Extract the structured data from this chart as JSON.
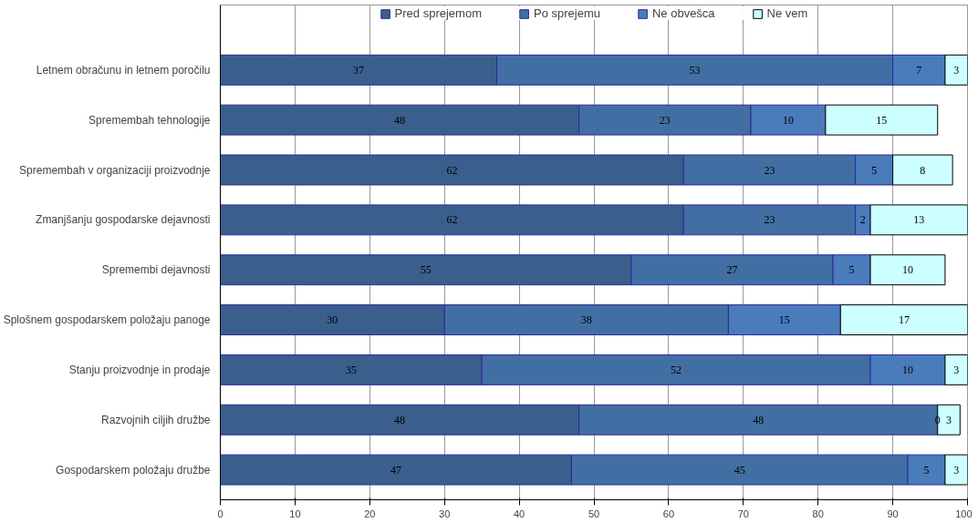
{
  "chart_data": {
    "type": "bar",
    "orientation": "horizontal",
    "stacked": true,
    "data_labels": true,
    "grid": "x",
    "legend": "top",
    "categories": [
      "Letnem obračunu in letnem poročilu",
      "Spremembah tehnologije",
      "Spremembah v organizaciji proizvodnje",
      "Zmanjšanju gospodarske dejavnosti",
      "Spremembi dejavnosti",
      "Splošnem gospodarskem položaju panoge",
      "Stanju proizvodnje in prodaje",
      "Razvojnih ciljih družbe",
      "Gospodarskem položaju družbe"
    ],
    "xlim": [
      0,
      100
    ],
    "xticks": [
      0,
      10,
      20,
      30,
      40,
      50,
      60,
      70,
      80,
      90,
      100
    ],
    "series": [
      {
        "name": "Pred sprejemom",
        "color": "#3a5f8c",
        "values": [
          37,
          48,
          62,
          62,
          55,
          30,
          35,
          48,
          47
        ]
      },
      {
        "name": "Po sprejemu",
        "color": "#426fa3",
        "values": [
          53,
          23,
          23,
          23,
          27,
          38,
          52,
          48,
          45
        ]
      },
      {
        "name": "Ne obvešca",
        "color": "#4a7bbb",
        "values": [
          7,
          10,
          5,
          2,
          5,
          15,
          10,
          0,
          5
        ]
      },
      {
        "name": "Ne vem",
        "color": "#ccffff",
        "values": [
          3,
          15,
          8,
          13,
          10,
          17,
          3,
          3,
          3
        ]
      }
    ]
  }
}
